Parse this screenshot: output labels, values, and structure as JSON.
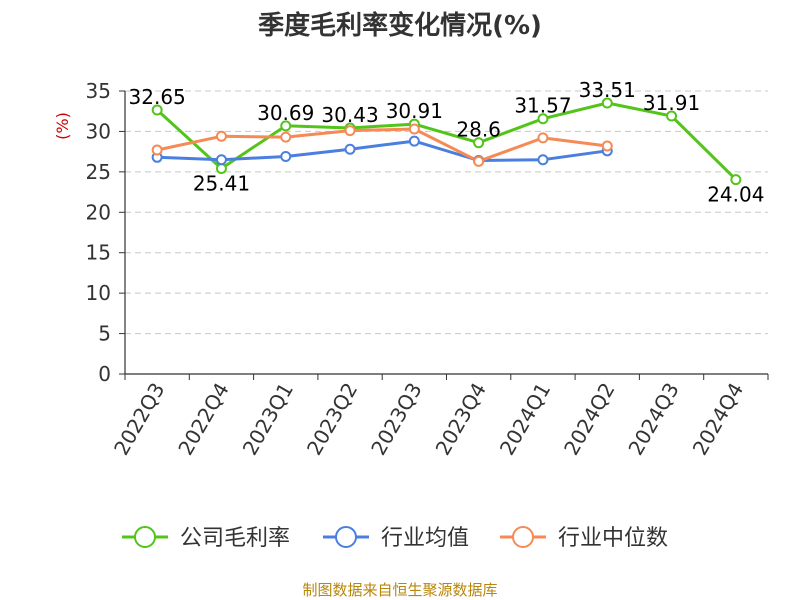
{
  "chart_data": {
    "type": "line",
    "title": "季度毛利率变化情况(%)",
    "ylabel": "(%)",
    "xlabel": "",
    "ylim": [
      0,
      35
    ],
    "yticks": [
      0,
      5,
      10,
      15,
      20,
      25,
      30,
      35
    ],
    "grid": true,
    "legend": "bottom",
    "categories": [
      "2022Q3",
      "2022Q4",
      "2023Q1",
      "2023Q2",
      "2023Q3",
      "2023Q4",
      "2024Q1",
      "2024Q2",
      "2024Q3",
      "2024Q4"
    ],
    "series": [
      {
        "name": "公司毛利率",
        "color": "#52c41a",
        "values": [
          32.65,
          25.41,
          30.69,
          30.43,
          30.91,
          28.6,
          31.57,
          33.51,
          31.91,
          24.04
        ],
        "labels": [
          "32.65",
          "25.41",
          "30.69",
          "30.43",
          "30.91",
          "28.6",
          "31.57",
          "33.51",
          "31.91",
          "24.04"
        ]
      },
      {
        "name": "行业均值",
        "color": "#4a7fe0",
        "values": [
          26.8,
          26.5,
          26.9,
          27.8,
          28.8,
          26.4,
          26.5,
          27.6,
          null,
          null
        ]
      },
      {
        "name": "行业中位数",
        "color": "#f58a55",
        "values": [
          27.7,
          29.4,
          29.3,
          30.1,
          30.3,
          26.3,
          29.2,
          28.2,
          null,
          null
        ]
      }
    ],
    "source": "制图数据来自恒生聚源数据库"
  }
}
